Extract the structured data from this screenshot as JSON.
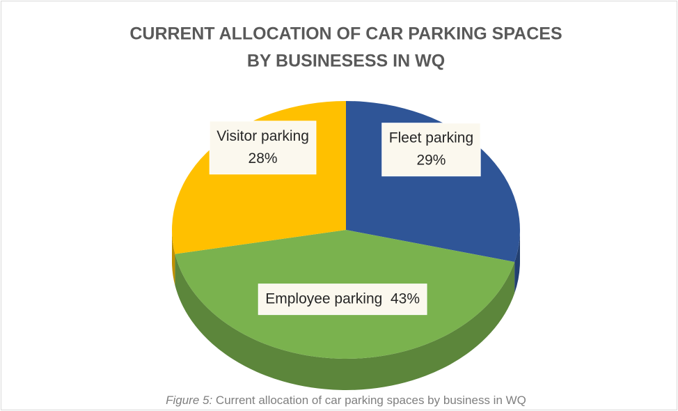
{
  "chart_data": {
    "type": "pie3d",
    "title": [
      "CURRENT ALLOCATION OF CAR PARKING SPACES",
      "BY BUSINESESS IN WQ"
    ],
    "categories": [
      "Fleet parking",
      "Employee parking",
      "Visitor parking"
    ],
    "values": [
      29,
      43,
      28
    ],
    "value_labels": [
      "29%",
      "43%",
      "28%"
    ],
    "colors": [
      "#2f5597",
      "#7ab24e",
      "#ffc000"
    ]
  },
  "caption": {
    "label": "Figure 5:",
    "text": "Current allocation of car parking spaces by business in WQ"
  }
}
